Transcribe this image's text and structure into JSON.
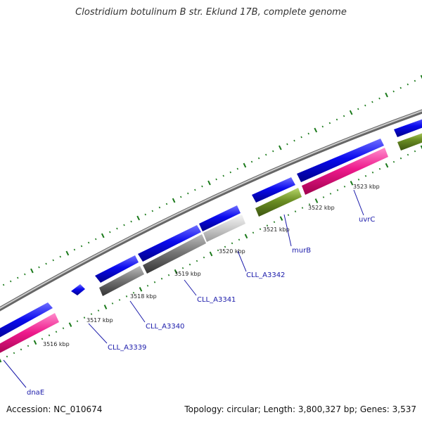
{
  "title": "Clostridium botulinum B str. Eklund 17B, complete genome",
  "footer": {
    "accession": "Accession: NC_010674",
    "summary": "Topology: circular; Length: 3,800,327 bp; Genes: 3,537"
  },
  "colors": {
    "background": "#ffffff",
    "backbone": "#888888",
    "cds_blue": "#0a0aee",
    "rrna_gray": "#777777",
    "trna_lightgray": "#cccccc",
    "pink": "#ee1a8c",
    "green": "#6b8e23",
    "tick_green": "#1b7a1b",
    "label_blue": "#1a1aaa"
  },
  "kbp_labels": [
    "3516 kbp",
    "3517 kbp",
    "3518 kbp",
    "3519 kbp",
    "3520 kbp",
    "3521 kbp",
    "3522 kbp",
    "3523 kbp"
  ],
  "gene_labels": [
    "dnaE",
    "CLL_A3339",
    "CLL_A3340",
    "CLL_A3341",
    "CLL_A3342",
    "murB",
    "uvrC"
  ]
}
